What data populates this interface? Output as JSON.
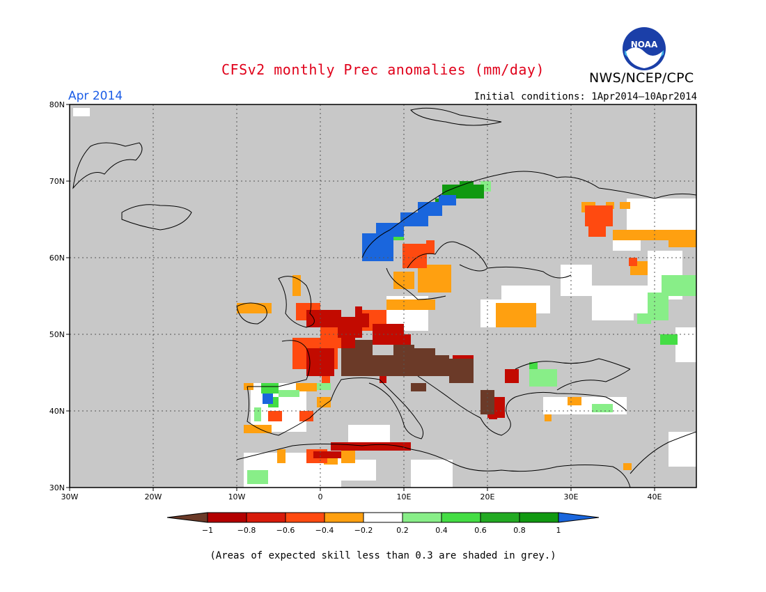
{
  "header": {
    "title": "CFSv2 monthly Prec anomalies (mm/day)",
    "organization": "NWS/NCEP/CPC",
    "logo_text": "NOAA",
    "month": "Apr 2014",
    "initial_conditions": "Initial conditions: 1Apr2014–10Apr2014"
  },
  "map": {
    "background_color": "#c8c8c8",
    "lon_labels": [
      "30W",
      "20W",
      "10W",
      "0",
      "10E",
      "20E",
      "30E",
      "40E"
    ],
    "lat_labels": [
      "80N",
      "70N",
      "60N",
      "50N",
      "40N",
      "30N"
    ]
  },
  "colorbar": {
    "ticks": [
      "−1",
      "−0.8",
      "−0.6",
      "−0.4",
      "−0.2",
      "0.2",
      "0.4",
      "0.6",
      "0.8",
      "1"
    ],
    "colors": [
      "#6b3a28",
      "#b30000",
      "#d81a0a",
      "#ff4a10",
      "#ffa010",
      "#ffffff",
      "#88ee88",
      "#44dd44",
      "#22aa22",
      "#119911",
      "#1a66dd"
    ]
  },
  "footnote": "(Areas of expected skill less than 0.3 are shaded in grey.)"
}
